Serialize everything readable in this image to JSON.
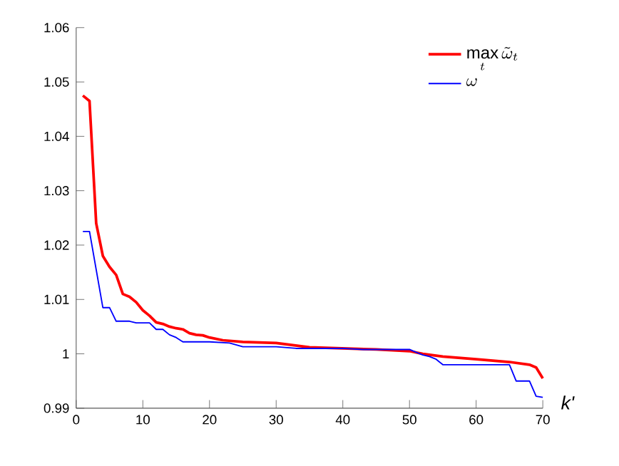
{
  "chart_data": {
    "type": "line",
    "xlabel": "k'",
    "xlim": [
      0,
      70
    ],
    "ylim": [
      0.99,
      1.06
    ],
    "xticks": [
      0,
      10,
      20,
      30,
      40,
      50,
      60,
      70
    ],
    "yticks": [
      0.99,
      1,
      1.01,
      1.02,
      1.03,
      1.04,
      1.05,
      1.06
    ],
    "legend": "top right",
    "grid": false,
    "marker": "none",
    "line_style": "solid",
    "series": [
      {
        "name": "\\max\\limits_{t} \\tilde{\\omega}_{t}",
        "color": "#ff0000",
        "x": [
          1,
          2,
          3,
          4,
          5,
          6,
          7,
          8,
          9,
          10,
          11,
          12,
          13,
          14,
          15,
          16,
          17,
          18,
          19,
          20,
          22,
          25,
          30,
          35,
          40,
          45,
          50,
          52,
          55,
          60,
          65,
          68,
          69,
          70
        ],
        "values": [
          1.0475,
          1.0465,
          1.024,
          1.018,
          1.016,
          1.0145,
          1.011,
          1.0105,
          1.0095,
          1.008,
          1.007,
          1.0058,
          1.0055,
          1.005,
          1.0047,
          1.0045,
          1.0038,
          1.0035,
          1.0034,
          1.003,
          1.0025,
          1.0022,
          1.002,
          1.0012,
          1.001,
          1.0008,
          1.0005,
          1.0,
          0.9995,
          0.999,
          0.9985,
          0.998,
          0.9975,
          0.9955
        ]
      },
      {
        "name": "\\omega",
        "color": "#0000ff",
        "x": [
          1,
          2,
          3,
          4,
          5,
          6,
          7,
          8,
          9,
          10,
          11,
          12,
          13,
          14,
          15,
          16,
          20,
          23,
          25,
          30,
          33,
          38,
          40,
          43,
          50,
          51,
          52,
          53,
          54,
          55,
          65,
          66,
          68,
          69,
          70
        ],
        "values": [
          1.0225,
          1.0225,
          1.0155,
          1.0085,
          1.0085,
          1.006,
          1.006,
          1.006,
          1.0057,
          1.0057,
          1.0057,
          1.0045,
          1.0045,
          1.0035,
          1.003,
          1.0022,
          1.0022,
          1.002,
          1.0013,
          1.0013,
          1.001,
          1.001,
          1.001,
          1.0008,
          1.0008,
          1.0003,
          0.9998,
          0.9995,
          0.999,
          0.998,
          0.998,
          0.995,
          0.995,
          0.9922,
          0.992
        ]
      }
    ]
  }
}
